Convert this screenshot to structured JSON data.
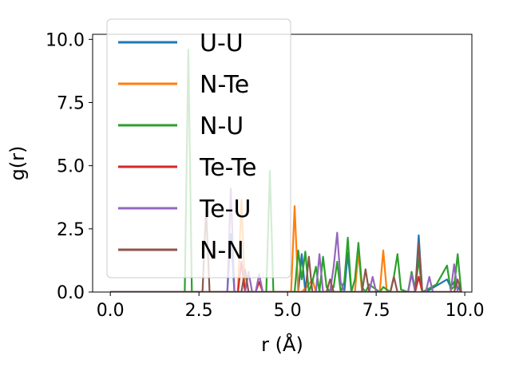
{
  "chart_data": {
    "type": "line",
    "xlabel": "r (Å)",
    "ylabel": "g(r)",
    "xlim": [
      -0.5,
      10.2
    ],
    "ylim": [
      0,
      10.2
    ],
    "xticks": [
      "0.0",
      "2.5",
      "5.0",
      "7.5",
      "10.0"
    ],
    "yticks": [
      "0.0",
      "2.5",
      "5.0",
      "7.5",
      "10.0"
    ],
    "grid": false,
    "legend_position": "upper-left",
    "series": [
      {
        "name": "U-U",
        "color": "#1f77b4",
        "x": [
          0,
          3.3,
          3.4,
          3.5,
          3.6,
          5.3,
          5.4,
          5.5,
          5.6,
          6.6,
          6.7,
          6.8,
          6.9,
          8.6,
          8.7,
          8.8,
          8.9,
          9.5,
          9.6,
          9.7,
          9.9
        ],
        "values": [
          0,
          0,
          2.3,
          0,
          0,
          0,
          1.5,
          0,
          0,
          0,
          1.55,
          0,
          0,
          0,
          2.25,
          0,
          0,
          0.5,
          0.2,
          0.4,
          0
        ]
      },
      {
        "name": "N-Te",
        "color": "#ff7f0e",
        "x": [
          0,
          3.6,
          3.7,
          3.8,
          3.9,
          5.1,
          5.2,
          5.3,
          5.4,
          5.6,
          5.7,
          5.8,
          6.9,
          7.0,
          7.1,
          7.6,
          7.7,
          7.8,
          8.6,
          8.7,
          8.8,
          9.9
        ],
        "values": [
          0,
          0,
          3.65,
          0,
          0,
          0,
          3.4,
          0,
          0,
          0.3,
          0.5,
          0,
          0,
          1.6,
          0,
          0,
          1.65,
          0,
          0,
          1.4,
          0,
          0
        ]
      },
      {
        "name": "N-U",
        "color": "#2ca02c",
        "x": [
          0,
          2.1,
          2.2,
          2.3,
          4.4,
          4.5,
          4.6,
          5.2,
          5.3,
          5.4,
          5.5,
          5.6,
          5.7,
          5.8,
          5.9,
          6.0,
          6.1,
          6.2,
          6.3,
          6.4,
          6.5,
          6.6,
          6.7,
          6.8,
          6.9,
          7.0,
          7.1,
          7.2,
          7.3,
          7.6,
          7.7,
          7.9,
          8.0,
          8.1,
          8.2,
          8.4,
          8.5,
          8.6,
          8.7,
          8.8,
          9.2,
          9.5,
          9.6,
          9.7,
          9.8,
          9.9
        ],
        "values": [
          0,
          0,
          9.6,
          0,
          0,
          4.8,
          0,
          0,
          1.65,
          0.5,
          1.6,
          0,
          0.4,
          1.0,
          0,
          1.4,
          0.2,
          0,
          0.2,
          1.2,
          0,
          0.4,
          2.15,
          0,
          0.5,
          1.95,
          0.2,
          0,
          0.3,
          0,
          0.2,
          0,
          0.6,
          1.5,
          0.1,
          0,
          0.8,
          0.1,
          1.3,
          0,
          0.3,
          1.05,
          0.1,
          0.2,
          1.5,
          0
        ]
      },
      {
        "name": "Te-Te",
        "color": "#d62728",
        "x": [
          0,
          3.6,
          3.7,
          3.8,
          4.1,
          4.2,
          4.3,
          8.6,
          8.7,
          8.8,
          9.9
        ],
        "values": [
          0,
          0,
          1.2,
          0,
          0,
          0.4,
          0,
          0,
          0.6,
          0,
          0
        ]
      },
      {
        "name": "Te-U",
        "color": "#9467bd",
        "x": [
          0,
          3.3,
          3.4,
          3.5,
          3.8,
          3.9,
          4.0,
          4.1,
          4.2,
          4.3,
          5.8,
          5.9,
          6.0,
          6.2,
          6.3,
          6.4,
          6.5,
          6.6,
          7.3,
          7.4,
          7.5,
          8.4,
          8.5,
          8.6,
          8.9,
          9.0,
          9.1,
          9.6,
          9.7,
          9.8
        ],
        "values": [
          0,
          0,
          4.1,
          0,
          0,
          0.8,
          0,
          0,
          0.7,
          0,
          0,
          1.5,
          0,
          0,
          1.0,
          2.35,
          0.4,
          0,
          0,
          0.6,
          0,
          0,
          0.7,
          0,
          0,
          0.6,
          0,
          0,
          1.1,
          0
        ]
      },
      {
        "name": "N-N",
        "color": "#8c564b",
        "x": [
          0,
          2.6,
          2.7,
          2.8,
          3.7,
          3.8,
          3.9,
          5.5,
          5.6,
          5.7,
          6.1,
          6.2,
          6.3,
          7.1,
          7.2,
          7.3,
          7.9,
          8.0,
          8.1,
          8.6,
          8.7,
          8.8,
          9.7,
          9.8,
          9.9
        ],
        "values": [
          0,
          0,
          3.3,
          0,
          0,
          0.9,
          0,
          0,
          1.4,
          0,
          0,
          0.5,
          0,
          0,
          0.9,
          0,
          0,
          0.6,
          0,
          0,
          1.95,
          0,
          0,
          0.5,
          0
        ]
      }
    ]
  }
}
